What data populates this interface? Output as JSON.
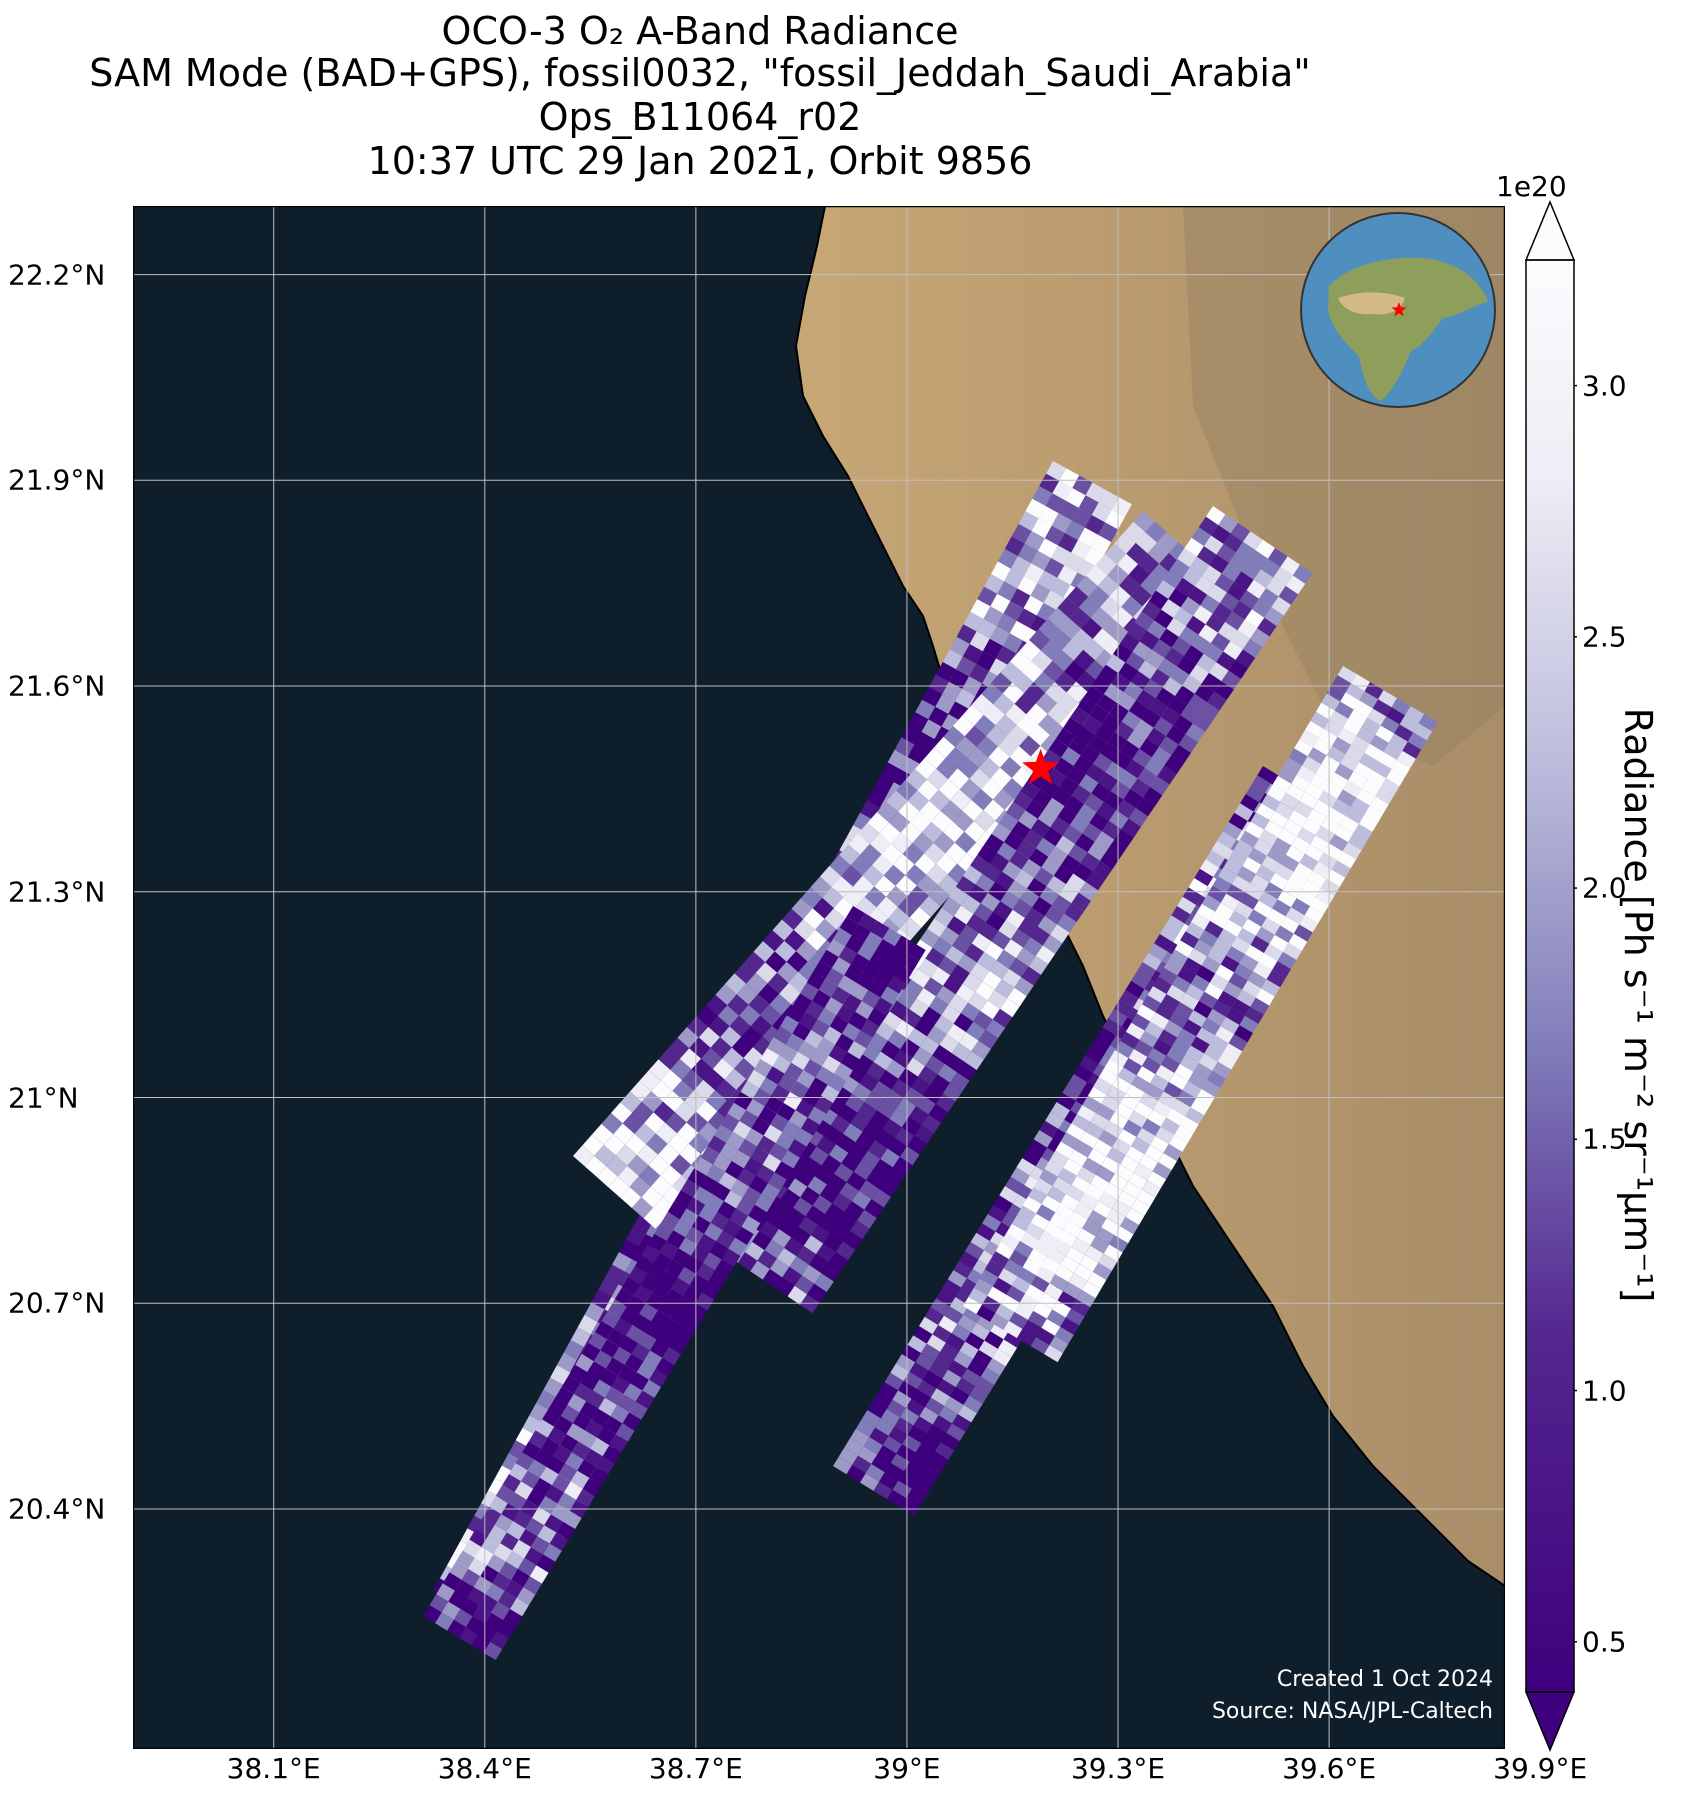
{
  "title_lines": [
    "OCO-3 O₂ A-Band Radiance",
    "SAM Mode (BAD+GPS), fossil0032, \"fossil_Jeddah_Saudi_Arabia\"",
    "Ops_B11064_r02",
    "10:37 UTC 29 Jan 2021, Orbit 9856"
  ],
  "map": {
    "lon_range": [
      37.9,
      39.85
    ],
    "lat_range": [
      20.05,
      22.3
    ],
    "x_ticks": [
      {
        "lon": 38.1,
        "label": "38.1°E"
      },
      {
        "lon": 38.4,
        "label": "38.4°E"
      },
      {
        "lon": 38.7,
        "label": "38.7°E"
      },
      {
        "lon": 39.0,
        "label": "39°E"
      },
      {
        "lon": 39.3,
        "label": "39.3°E"
      },
      {
        "lon": 39.6,
        "label": "39.6°E"
      },
      {
        "lon": 39.9,
        "label": "39.9°E"
      }
    ],
    "y_ticks": [
      {
        "lat": 22.2,
        "label": "22.2°N"
      },
      {
        "lat": 21.9,
        "label": "21.9°N"
      },
      {
        "lat": 21.6,
        "label": "21.6°N"
      },
      {
        "lat": 21.3,
        "label": "21.3°N"
      },
      {
        "lat": 21.0,
        "label": "21°N"
      },
      {
        "lat": 20.7,
        "label": "20.7°N"
      },
      {
        "lat": 20.4,
        "label": "20.4°N"
      }
    ],
    "target_marker": {
      "lon": 39.19,
      "lat": 21.48,
      "color": "#ff0000"
    },
    "colors": {
      "sea": "#0e1e2a",
      "land": "#c9a878",
      "grid": "#bfbfbf"
    },
    "footer_lines": [
      "Created 1 Oct 2024",
      "Source: NASA/JPL-Caltech"
    ]
  },
  "colorbar": {
    "exponent_label": "1e20",
    "label": "Radiance [Ph s⁻¹ m⁻² sr⁻¹μm⁻¹]",
    "vmin": 0.4,
    "vmax": 3.25,
    "ticks": [
      {
        "value": 0.5,
        "label": "0.5"
      },
      {
        "value": 1.0,
        "label": "1.0"
      },
      {
        "value": 1.5,
        "label": "1.5"
      },
      {
        "value": 2.0,
        "label": "2.0"
      },
      {
        "value": 2.5,
        "label": "2.5"
      },
      {
        "value": 3.0,
        "label": "3.0"
      }
    ],
    "colors": {
      "low": "#3f007d",
      "mid": "#8a84c0",
      "high": "#fcfbfd"
    }
  }
}
